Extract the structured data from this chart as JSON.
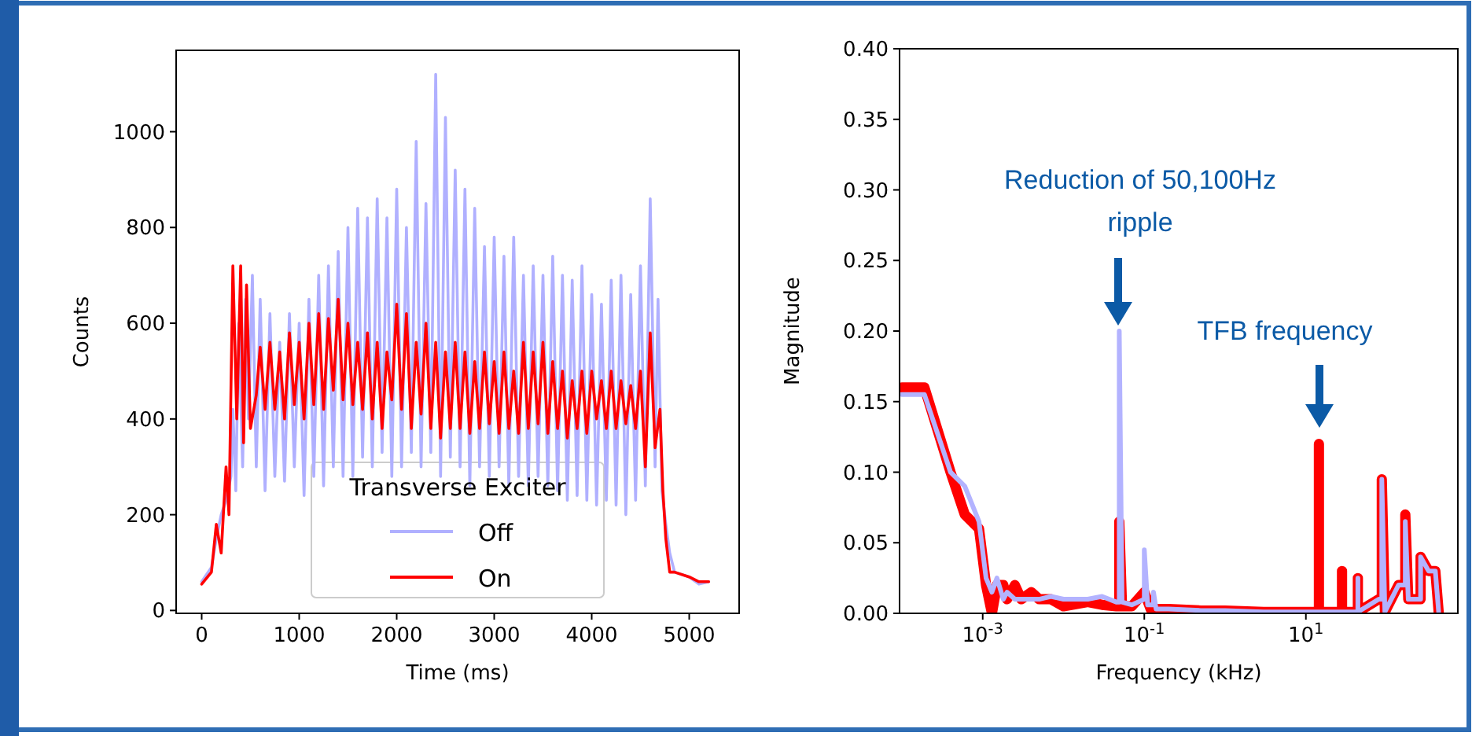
{
  "chart_data": [
    {
      "type": "line",
      "xlabel": "Time (ms)",
      "ylabel": "Counts",
      "legend_title": "Transverse Exciter",
      "legend": "bottom",
      "xlim": [
        -262,
        5512
      ],
      "ylim": [
        -6,
        1170
      ],
      "xticks": [
        0,
        1000,
        2000,
        3000,
        4000,
        5000
      ],
      "yticks": [
        0,
        200,
        400,
        600,
        800,
        1000
      ],
      "series": [
        {
          "name": "Off",
          "color": "#b0b0ff",
          "x": [
            0,
            100,
            150,
            200,
            250,
            300,
            320,
            350,
            380,
            420,
            450,
            480,
            520,
            560,
            600,
            650,
            700,
            750,
            800,
            850,
            900,
            950,
            1000,
            1050,
            1100,
            1150,
            1200,
            1250,
            1300,
            1350,
            1400,
            1450,
            1500,
            1550,
            1600,
            1650,
            1700,
            1750,
            1800,
            1850,
            1900,
            1950,
            2000,
            2050,
            2100,
            2150,
            2200,
            2250,
            2300,
            2350,
            2400,
            2450,
            2500,
            2550,
            2600,
            2650,
            2700,
            2750,
            2800,
            2850,
            2900,
            2950,
            3000,
            3050,
            3100,
            3150,
            3200,
            3250,
            3300,
            3350,
            3400,
            3450,
            3500,
            3550,
            3600,
            3650,
            3700,
            3750,
            3800,
            3850,
            3900,
            3950,
            4000,
            4050,
            4100,
            4150,
            4200,
            4250,
            4300,
            4350,
            4400,
            4450,
            4500,
            4550,
            4600,
            4650,
            4680,
            4720,
            4760,
            4800,
            4850,
            5000,
            5100,
            5200
          ],
          "values": [
            60,
            90,
            150,
            200,
            230,
            280,
            420,
            250,
            600,
            300,
            650,
            400,
            700,
            300,
            650,
            250,
            620,
            280,
            560,
            270,
            620,
            300,
            600,
            240,
            650,
            280,
            700,
            260,
            720,
            300,
            750,
            280,
            800,
            280,
            840,
            320,
            820,
            300,
            860,
            330,
            820,
            280,
            880,
            300,
            800,
            330,
            980,
            300,
            850,
            330,
            1120,
            280,
            1030,
            320,
            920,
            300,
            880,
            260,
            840,
            300,
            760,
            280,
            780,
            300,
            740,
            260,
            780,
            280,
            700,
            260,
            720,
            280,
            700,
            260,
            740,
            250,
            700,
            230,
            690,
            240,
            720,
            230,
            660,
            220,
            640,
            230,
            690,
            220,
            700,
            200,
            660,
            230,
            720,
            260,
            860,
            300,
            650,
            250,
            180,
            120,
            80,
            70,
            55,
            60
          ]
        },
        {
          "name": "On",
          "color": "#ff0000",
          "x": [
            0,
            100,
            150,
            200,
            250,
            280,
            320,
            360,
            400,
            430,
            460,
            500,
            560,
            600,
            650,
            700,
            750,
            800,
            850,
            900,
            950,
            1000,
            1050,
            1100,
            1150,
            1200,
            1250,
            1300,
            1350,
            1400,
            1450,
            1500,
            1550,
            1600,
            1650,
            1700,
            1750,
            1800,
            1850,
            1900,
            1950,
            2000,
            2050,
            2100,
            2150,
            2200,
            2250,
            2300,
            2350,
            2400,
            2450,
            2500,
            2550,
            2600,
            2650,
            2700,
            2750,
            2800,
            2850,
            2900,
            2950,
            3000,
            3050,
            3100,
            3150,
            3200,
            3250,
            3300,
            3350,
            3400,
            3450,
            3500,
            3550,
            3600,
            3650,
            3700,
            3750,
            3800,
            3850,
            3900,
            3950,
            4000,
            4050,
            4100,
            4150,
            4200,
            4250,
            4300,
            4350,
            4400,
            4450,
            4500,
            4550,
            4600,
            4650,
            4700,
            4730,
            4760,
            4800,
            4850,
            5000,
            5100,
            5200
          ],
          "values": [
            55,
            80,
            180,
            120,
            300,
            200,
            720,
            400,
            720,
            350,
            680,
            380,
            450,
            550,
            420,
            560,
            420,
            540,
            400,
            580,
            430,
            560,
            400,
            600,
            430,
            620,
            420,
            610,
            460,
            650,
            440,
            600,
            430,
            560,
            420,
            580,
            400,
            560,
            380,
            540,
            440,
            640,
            420,
            620,
            380,
            560,
            410,
            600,
            380,
            560,
            360,
            540,
            380,
            560,
            380,
            540,
            370,
            520,
            380,
            540,
            390,
            520,
            370,
            540,
            380,
            500,
            370,
            560,
            380,
            540,
            390,
            560,
            370,
            520,
            380,
            500,
            360,
            480,
            380,
            500,
            370,
            500,
            400,
            480,
            380,
            500,
            380,
            480,
            390,
            470,
            380,
            500,
            300,
            580,
            340,
            420,
            250,
            150,
            80,
            80,
            70,
            60,
            60
          ]
        }
      ]
    },
    {
      "type": "line",
      "xlabel": "Frequency (kHz)",
      "ylabel": "Magnitude",
      "log": "x",
      "xlim": [
        9.35e-05,
        760
      ],
      "ylim": [
        0,
        0.4
      ],
      "xticks": [
        {
          "value": 0.001,
          "label": "10$^{-3}$"
        },
        {
          "value": 0.1,
          "label": "10$^{-1}$"
        },
        {
          "value": 10,
          "label": "10$^{1}$"
        }
      ],
      "yticks": [
        {
          "value": 0,
          "label": "0.00"
        },
        {
          "value": 0.05,
          "label": "0.05"
        },
        {
          "value": 0.1,
          "label": "0.10"
        },
        {
          "value": 0.15,
          "label": "0.15"
        },
        {
          "value": 0.2,
          "label": "0.20"
        },
        {
          "value": 0.25,
          "label": "0.25"
        },
        {
          "value": 0.3,
          "label": "0.30"
        },
        {
          "value": 0.35,
          "label": "0.35"
        },
        {
          "value": 0.4,
          "label": "0.40"
        }
      ],
      "annotations": [
        "Reduction of 50,100Hz\nripple",
        "TFB frequency"
      ],
      "series": [
        {
          "color": "#ff0000",
          "x": [
            0.0001,
            0.00019,
            0.0004,
            0.0006,
            0.0009,
            0.0011,
            0.0013,
            0.0015,
            0.0018,
            0.002,
            0.0025,
            0.003,
            0.004,
            0.005,
            0.007,
            0.01,
            0.02,
            0.03,
            0.045,
            0.049,
            0.049,
            0.053,
            0.07,
            0.1,
            0.12,
            0.2,
            0.5,
            1,
            3,
            10,
            14.5,
            14.5,
            14.5,
            28,
            28,
            28,
            44,
            44,
            44,
            80,
            87,
            87,
            95,
            140,
            170,
            170,
            185,
            263,
            263,
            330,
            400,
            440
          ],
          "values": [
            0.16,
            0.16,
            0.1,
            0.07,
            0.06,
            0.02,
            0.0,
            0.02,
            0.02,
            0.01,
            0.02,
            0.01,
            0.015,
            0.01,
            0.01,
            0.005,
            0.008,
            0.006,
            0.005,
            0.005,
            0.065,
            0.005,
            0.005,
            0.015,
            0.003,
            0.003,
            0.002,
            0.002,
            0.001,
            0.001,
            0.001,
            0.12,
            0.001,
            0.001,
            0.03,
            0.001,
            0.001,
            0.025,
            0.001,
            0.01,
            0.01,
            0.095,
            0.001,
            0.02,
            0.02,
            0.07,
            0.01,
            0.01,
            0.04,
            0.03,
            0.03,
            0.001
          ]
        },
        {
          "color": "#b3b3ff",
          "x": [
            0.0001,
            0.00019,
            0.0004,
            0.0006,
            0.0009,
            0.0011,
            0.0013,
            0.0015,
            0.0018,
            0.002,
            0.0025,
            0.003,
            0.004,
            0.005,
            0.007,
            0.01,
            0.02,
            0.03,
            0.045,
            0.049,
            0.049,
            0.053,
            0.07,
            0.1,
            0.1,
            0.11,
            0.13,
            0.13,
            0.14,
            0.2,
            0.5,
            1,
            3,
            10,
            28,
            44,
            44,
            44,
            80,
            87,
            87,
            95,
            140,
            170,
            170,
            185,
            263,
            263,
            330,
            400,
            440
          ],
          "values": [
            0.155,
            0.155,
            0.1,
            0.09,
            0.065,
            0.025,
            0.015,
            0.025,
            0.01,
            0.015,
            0.01,
            0.01,
            0.01,
            0.01,
            0.012,
            0.01,
            0.01,
            0.012,
            0.008,
            0.008,
            0.2,
            0.008,
            0.006,
            0.01,
            0.045,
            0.006,
            0.006,
            0.015,
            0.003,
            0.003,
            0.002,
            0.002,
            0.001,
            0.001,
            0.001,
            0.001,
            0.025,
            0.001,
            0.01,
            0.01,
            0.095,
            0.001,
            0.02,
            0.02,
            0.065,
            0.01,
            0.01,
            0.04,
            0.03,
            0.03,
            0.001
          ]
        }
      ]
    }
  ]
}
